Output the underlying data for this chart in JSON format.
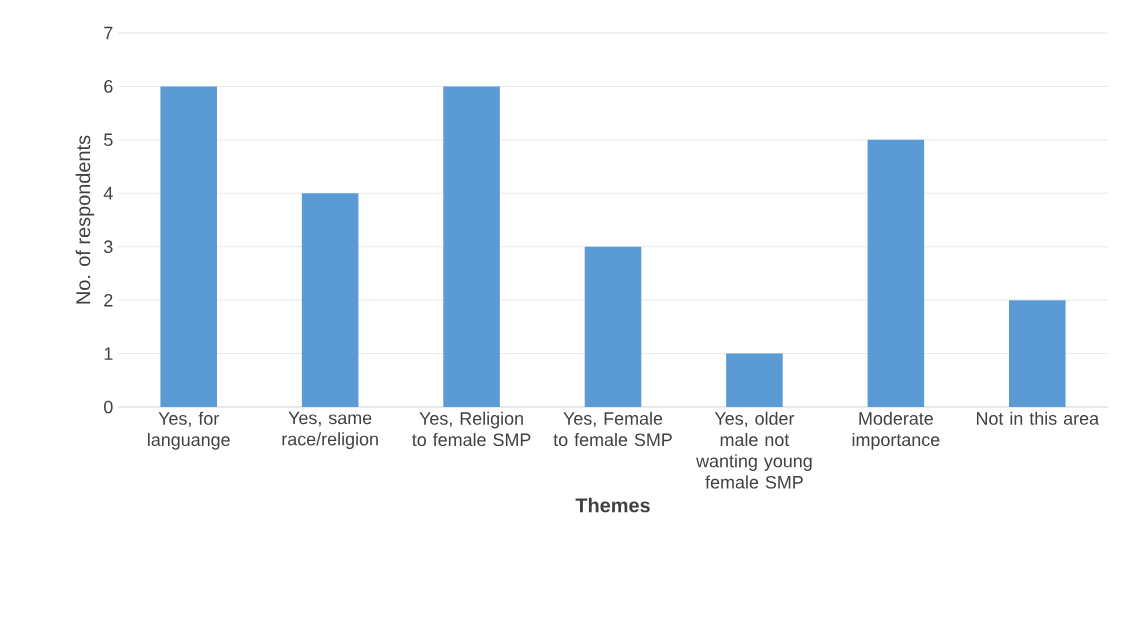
{
  "chart_data": {
    "type": "bar",
    "xlabel": "Themes",
    "ylabel": "No. of respondents",
    "categories": [
      "Yes, for languange",
      "Yes, same race/religion",
      "Yes, Religion to female SMP",
      "Yes, Female to female SMP",
      "Yes, older male not wanting young female SMP",
      "Moderate importance",
      "Not in this area"
    ],
    "values": [
      6,
      4,
      6,
      3,
      1,
      5,
      2
    ],
    "color": "#5b9bd5",
    "ylim": [
      0,
      7
    ],
    "yticks": [
      0,
      1,
      2,
      3,
      4,
      5,
      6,
      7
    ],
    "grid": "y"
  }
}
